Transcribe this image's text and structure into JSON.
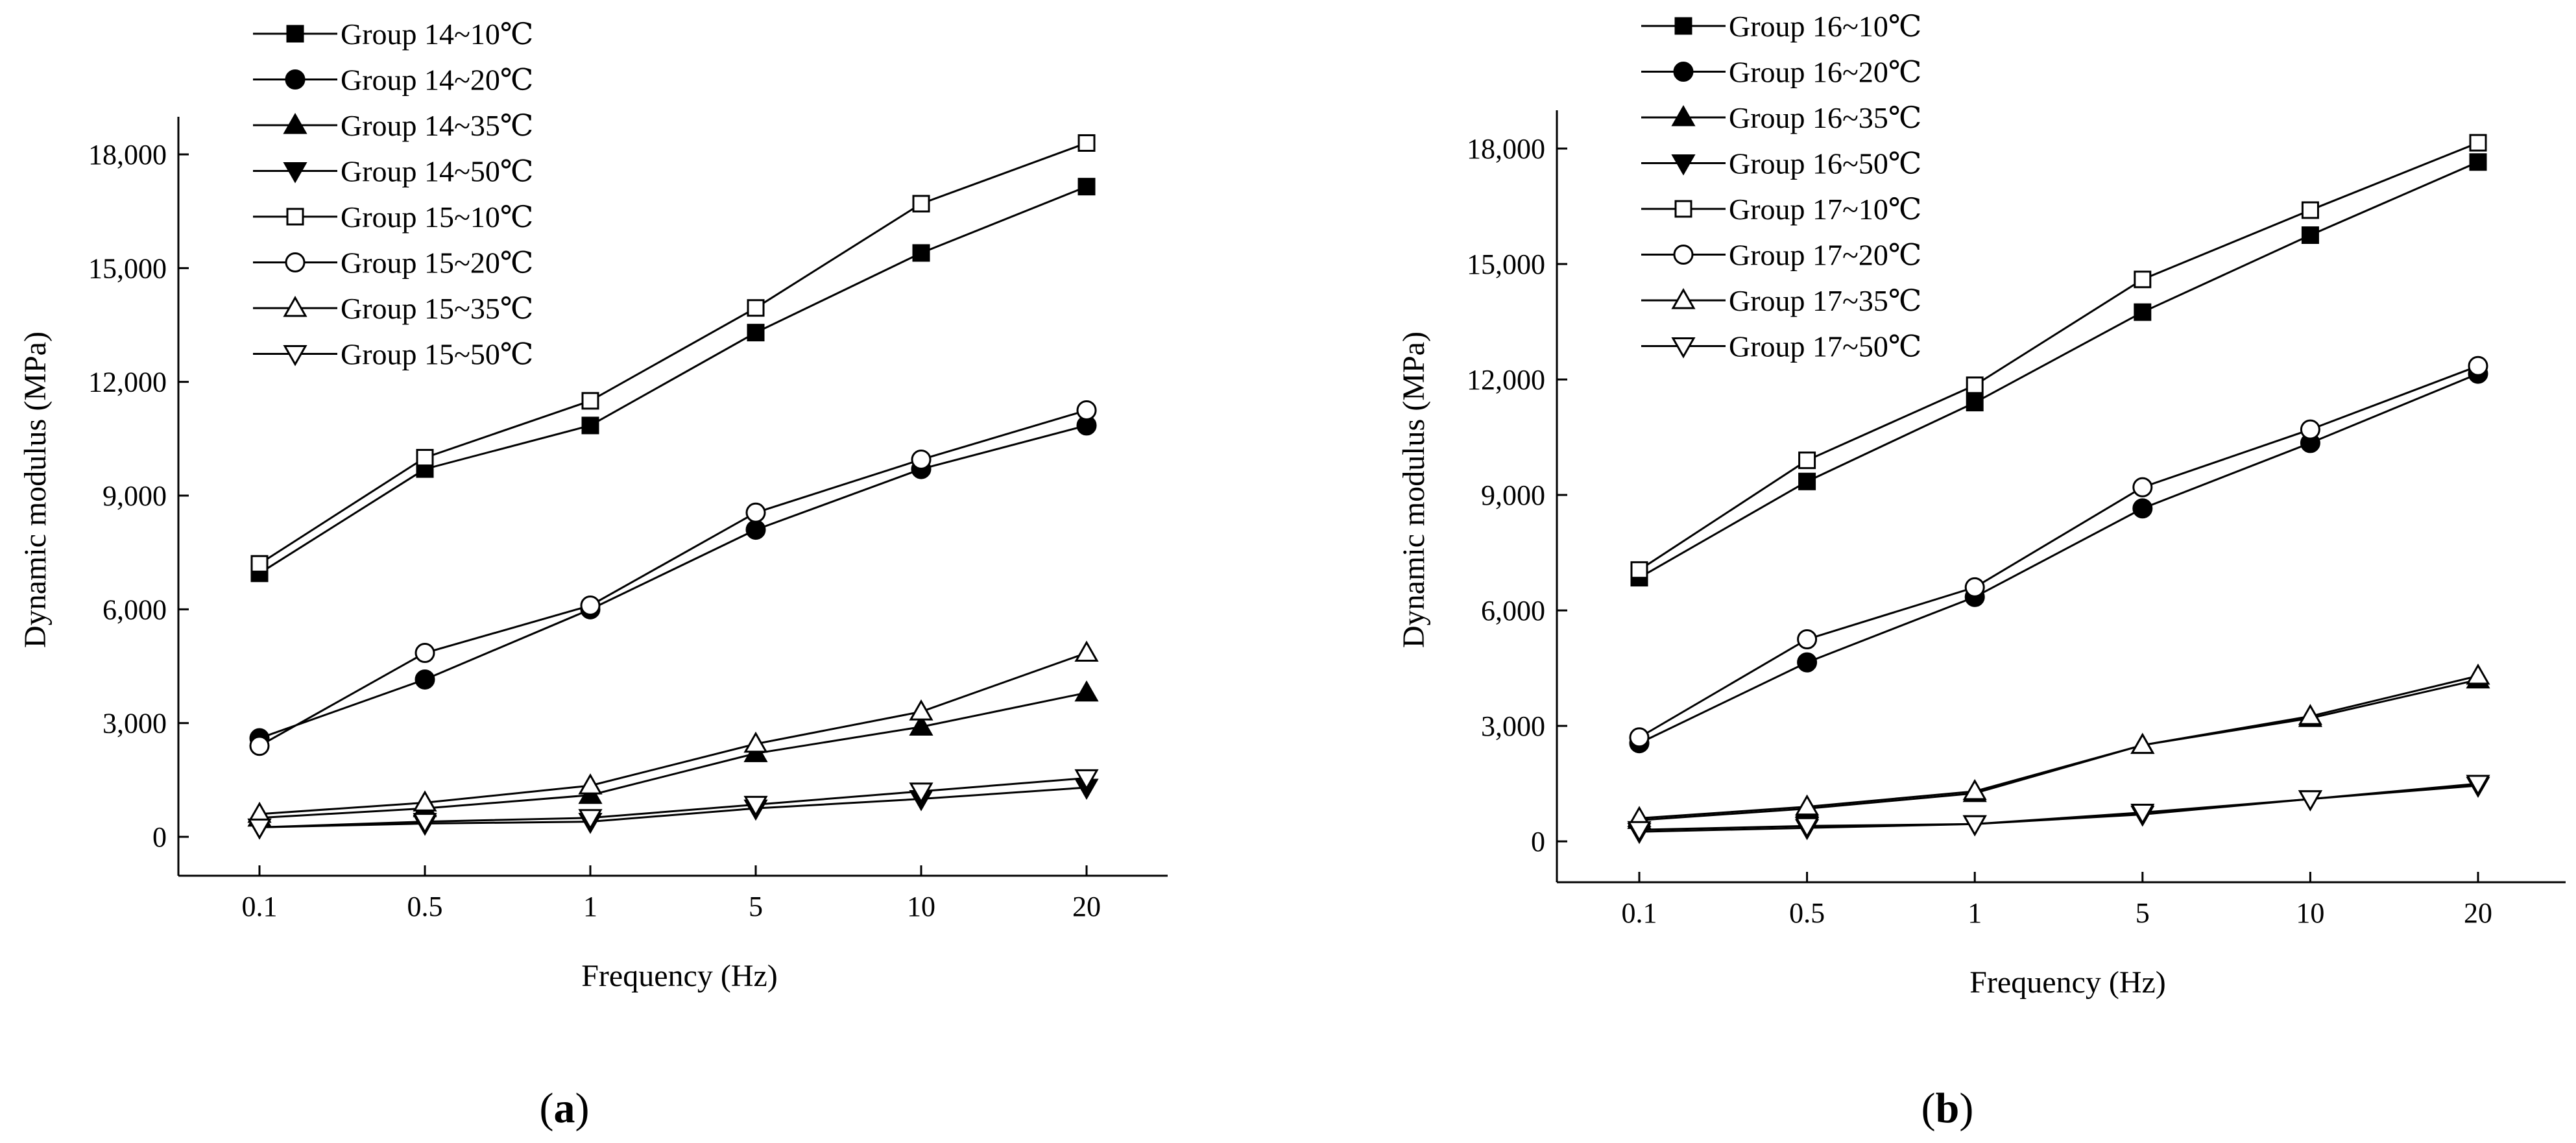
{
  "chart_data": [
    {
      "panel": "a",
      "type": "line",
      "title": "",
      "xlabel": "Frequency (Hz)",
      "ylabel": "Dynamic modulus (MPa)",
      "categories": [
        "0.1",
        "0.5",
        "1",
        "5",
        "10",
        "20"
      ],
      "ylim": [
        -1000,
        19000
      ],
      "yticks": [
        0,
        3000,
        6000,
        9000,
        12000,
        15000,
        18000
      ],
      "ytick_labels": [
        "0",
        "3,000",
        "6,000",
        "9,000",
        "12,000",
        "15,000",
        "18,000"
      ],
      "legend_position": "top-left",
      "series": [
        {
          "name": "Group 14~10℃",
          "marker": "square-filled",
          "values": [
            6950,
            9700,
            10850,
            13300,
            15400,
            17150
          ]
        },
        {
          "name": "Group 14~20℃",
          "marker": "circle-filled",
          "values": [
            2600,
            4150,
            6000,
            8100,
            9700,
            10850
          ]
        },
        {
          "name": "Group 14~35℃",
          "marker": "triangle-up-filled",
          "values": [
            500,
            750,
            1100,
            2200,
            2900,
            3800
          ]
        },
        {
          "name": "Group 14~50℃",
          "marker": "triangle-down-filled",
          "values": [
            250,
            350,
            400,
            750,
            1000,
            1300
          ]
        },
        {
          "name": "Group 15~10℃",
          "marker": "square-open",
          "values": [
            7200,
            10000,
            11500,
            13950,
            16700,
            18300
          ]
        },
        {
          "name": "Group 15~20℃",
          "marker": "circle-open",
          "values": [
            2400,
            4850,
            6100,
            8550,
            9950,
            11250
          ]
        },
        {
          "name": "Group 15~35℃",
          "marker": "triangle-up-open",
          "values": [
            600,
            900,
            1350,
            2450,
            3300,
            4850
          ]
        },
        {
          "name": "Group 15~50℃",
          "marker": "triangle-down-open",
          "values": [
            250,
            400,
            500,
            850,
            1200,
            1550
          ]
        }
      ]
    },
    {
      "panel": "b",
      "type": "line",
      "title": "",
      "xlabel": "Frequency (Hz)",
      "ylabel": "Dynamic modulus (MPa)",
      "categories": [
        "0.1",
        "0.5",
        "1",
        "5",
        "10",
        "20"
      ],
      "ylim": [
        -1000,
        19000
      ],
      "yticks": [
        0,
        3000,
        6000,
        9000,
        12000,
        15000,
        18000
      ],
      "ytick_labels": [
        "0",
        "3,000",
        "6,000",
        "9,000",
        "12,000",
        "15,000",
        "18,000"
      ],
      "legend_position": "top-left",
      "series": [
        {
          "name": "Group 16~10℃",
          "marker": "square-filled",
          "values": [
            6850,
            9350,
            11400,
            13750,
            15750,
            17650
          ]
        },
        {
          "name": "Group 16~20℃",
          "marker": "circle-filled",
          "values": [
            2550,
            4650,
            6350,
            8650,
            10350,
            12150
          ]
        },
        {
          "name": "Group 16~35℃",
          "marker": "triangle-up-filled",
          "values": [
            550,
            850,
            1250,
            2500,
            3200,
            4200
          ]
        },
        {
          "name": "Group 16~50℃",
          "marker": "triangle-down-filled",
          "values": [
            250,
            350,
            450,
            700,
            1100,
            1450
          ]
        },
        {
          "name": "Group 17~10℃",
          "marker": "square-open",
          "values": [
            7050,
            9900,
            11850,
            14600,
            16400,
            18150
          ]
        },
        {
          "name": "Group 17~20℃",
          "marker": "circle-open",
          "values": [
            2700,
            5250,
            6600,
            9200,
            10700,
            12350
          ]
        },
        {
          "name": "Group 17~35℃",
          "marker": "triangle-up-open",
          "values": [
            600,
            900,
            1300,
            2500,
            3250,
            4300
          ]
        },
        {
          "name": "Group 17~50℃",
          "marker": "triangle-down-open",
          "values": [
            300,
            400,
            450,
            750,
            1100,
            1500
          ]
        }
      ]
    }
  ],
  "panel_labels": {
    "a_open": "(",
    "a": "a",
    "a_close": ")",
    "b_open": "(",
    "b": "b",
    "b_close": ")"
  }
}
